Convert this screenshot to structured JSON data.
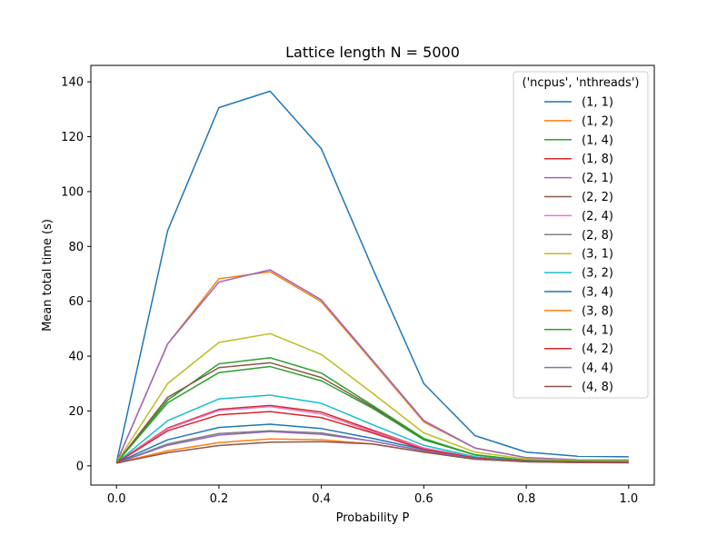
{
  "chart_data": {
    "type": "line",
    "title": "Lattice length N = 5000",
    "xlabel": "Probability P",
    "ylabel": "Mean total time (s)",
    "xlim": [
      -0.05,
      1.05
    ],
    "ylim": [
      -7,
      146
    ],
    "x": [
      0.0,
      0.1,
      0.2,
      0.3,
      0.4,
      0.5,
      0.6,
      0.7,
      0.8,
      0.9,
      1.0
    ],
    "xticks": [
      "0.0",
      "0.2",
      "0.4",
      "0.6",
      "0.8",
      "1.0"
    ],
    "yticks": [
      "0",
      "20",
      "40",
      "60",
      "80",
      "100",
      "120",
      "140"
    ],
    "legend_title": "('ncpus', 'nthreads')",
    "legend_position": "top-right",
    "grid": false,
    "series": [
      {
        "name": "(1, 1)",
        "color": "#1f77b4",
        "values": [
          1.2,
          85.8,
          130.6,
          136.6,
          115.6,
          72.0,
          30.0,
          11.0,
          5.0,
          3.5,
          3.3
        ]
      },
      {
        "name": "(1, 2)",
        "color": "#ff7f0e",
        "values": [
          1.2,
          44.5,
          68.2,
          70.8,
          59.8,
          38.0,
          16.0,
          6.5,
          3.0,
          2.2,
          2.1
        ]
      },
      {
        "name": "(1, 4)",
        "color": "#2ca02c",
        "values": [
          1.1,
          24.0,
          37.2,
          39.4,
          33.8,
          22.0,
          10.0,
          4.0,
          2.0,
          1.6,
          1.5
        ]
      },
      {
        "name": "(1, 8)",
        "color": "#d62728",
        "values": [
          1.1,
          13.8,
          20.6,
          22.0,
          19.6,
          13.0,
          6.5,
          3.0,
          1.7,
          1.4,
          1.3
        ]
      },
      {
        "name": "(2, 1)",
        "color": "#9467bd",
        "values": [
          1.2,
          44.5,
          67.0,
          71.5,
          60.5,
          38.5,
          16.5,
          6.5,
          3.0,
          2.2,
          2.1
        ]
      },
      {
        "name": "(2, 2)",
        "color": "#8c564b",
        "values": [
          1.1,
          25.0,
          35.8,
          37.6,
          32.2,
          21.5,
          9.5,
          4.0,
          2.0,
          1.6,
          1.5
        ]
      },
      {
        "name": "(2, 4)",
        "color": "#e377c2",
        "values": [
          1.1,
          13.5,
          20.2,
          21.6,
          18.9,
          12.5,
          6.5,
          3.0,
          1.7,
          1.4,
          1.3
        ]
      },
      {
        "name": "(2, 8)",
        "color": "#7f7f7f",
        "values": [
          1.0,
          8.0,
          11.8,
          12.8,
          12.0,
          9.0,
          5.5,
          2.6,
          1.6,
          1.3,
          1.2
        ]
      },
      {
        "name": "(3, 1)",
        "color": "#bcbd22",
        "values": [
          1.2,
          30.0,
          45.0,
          48.2,
          40.6,
          26.5,
          12.0,
          5.0,
          2.5,
          1.9,
          1.8
        ]
      },
      {
        "name": "(3, 2)",
        "color": "#17becf",
        "values": [
          1.1,
          16.5,
          24.4,
          25.8,
          22.8,
          15.0,
          7.5,
          3.3,
          1.8,
          1.5,
          1.4
        ]
      },
      {
        "name": "(3, 4)",
        "color": "#1f77b4",
        "values": [
          1.1,
          9.5,
          14.0,
          15.2,
          13.6,
          10.0,
          6.0,
          2.8,
          1.7,
          1.4,
          1.3
        ]
      },
      {
        "name": "(3, 8)",
        "color": "#ff7f0e",
        "values": [
          1.0,
          5.5,
          8.5,
          9.8,
          9.5,
          8.0,
          5.0,
          2.5,
          1.5,
          1.3,
          1.2
        ]
      },
      {
        "name": "(4, 1)",
        "color": "#2ca02c",
        "values": [
          1.1,
          23.0,
          34.0,
          36.2,
          31.0,
          21.0,
          9.5,
          4.0,
          2.0,
          1.6,
          1.5
        ]
      },
      {
        "name": "(4, 2)",
        "color": "#d62728",
        "values": [
          1.1,
          12.8,
          18.6,
          19.8,
          17.6,
          12.0,
          6.0,
          2.9,
          1.7,
          1.4,
          1.3
        ]
      },
      {
        "name": "(4, 4)",
        "color": "#9467bd",
        "values": [
          1.0,
          7.5,
          11.2,
          12.5,
          11.5,
          9.0,
          5.5,
          2.6,
          1.6,
          1.3,
          1.2
        ]
      },
      {
        "name": "(4, 8)",
        "color": "#8c564b",
        "values": [
          1.0,
          4.8,
          7.4,
          8.6,
          8.8,
          8.0,
          5.0,
          2.4,
          1.5,
          1.2,
          1.1
        ]
      }
    ]
  }
}
